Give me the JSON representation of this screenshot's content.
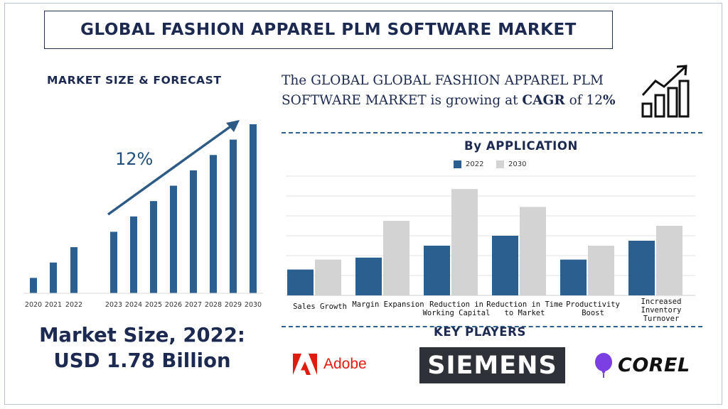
{
  "title": "GLOBAL FASHION APPAREL PLM SOFTWARE MARKET",
  "left_heading": "MARKET SIZE & FORECAST",
  "cagr_sentence": {
    "prefix": "The GLOBAL GLOBAL FASHION APPAREL PLM SOFTWARE MARKET is growing at ",
    "cagr_word": "CAGR",
    "middle": " of  12",
    "percent": "%"
  },
  "by_application_heading": "By APPLICATION",
  "market_size_line1": "Market Size, 2022:",
  "market_size_line2": "USD 1.78 Billion",
  "key_players_heading": "KEY PLAYERS",
  "players": {
    "adobe": "Adobe",
    "siemens": "SIEMENS",
    "corel": "COREL"
  },
  "colors": {
    "navy": "#1c2a52",
    "bar_blue": "#2a5f8f",
    "bar_gray": "#d3d3d3",
    "adobe_red": "#e01b0f",
    "corel_purple": "#7b3fe4"
  },
  "icons": [
    "growth-chart-icon",
    "adobe-icon",
    "corel-balloon-icon",
    "trend-arrow-icon"
  ],
  "chart_data": [
    {
      "type": "bar",
      "title": "MARKET SIZE & FORECAST",
      "categories": [
        "2020",
        "2021",
        "2022",
        "2023",
        "2024",
        "2025",
        "2026",
        "2027",
        "2028",
        "2029",
        "2030"
      ],
      "values": [
        1.0,
        2.0,
        3.0,
        4.0,
        5.0,
        6.0,
        7.0,
        8.0,
        9.0,
        10.0,
        11.0
      ],
      "annotation": "12%",
      "grid": false,
      "legend": "none"
    },
    {
      "type": "bar",
      "title": "By APPLICATION",
      "categories": [
        "Sales Growth",
        "Margin Expansion",
        "Reduction in Working Capital",
        "Reduction in Time to Market",
        "Productivity Boost",
        "Increased Inventory Turnover"
      ],
      "series": [
        {
          "name": "2022",
          "values": [
            1.3,
            1.9,
            2.5,
            3.0,
            1.8,
            2.75
          ]
        },
        {
          "name": "2030",
          "values": [
            1.8,
            3.75,
            5.35,
            4.45,
            2.5,
            3.5
          ]
        }
      ],
      "ylim": [
        0,
        6
      ],
      "grid": true,
      "legend": "top-center"
    }
  ]
}
